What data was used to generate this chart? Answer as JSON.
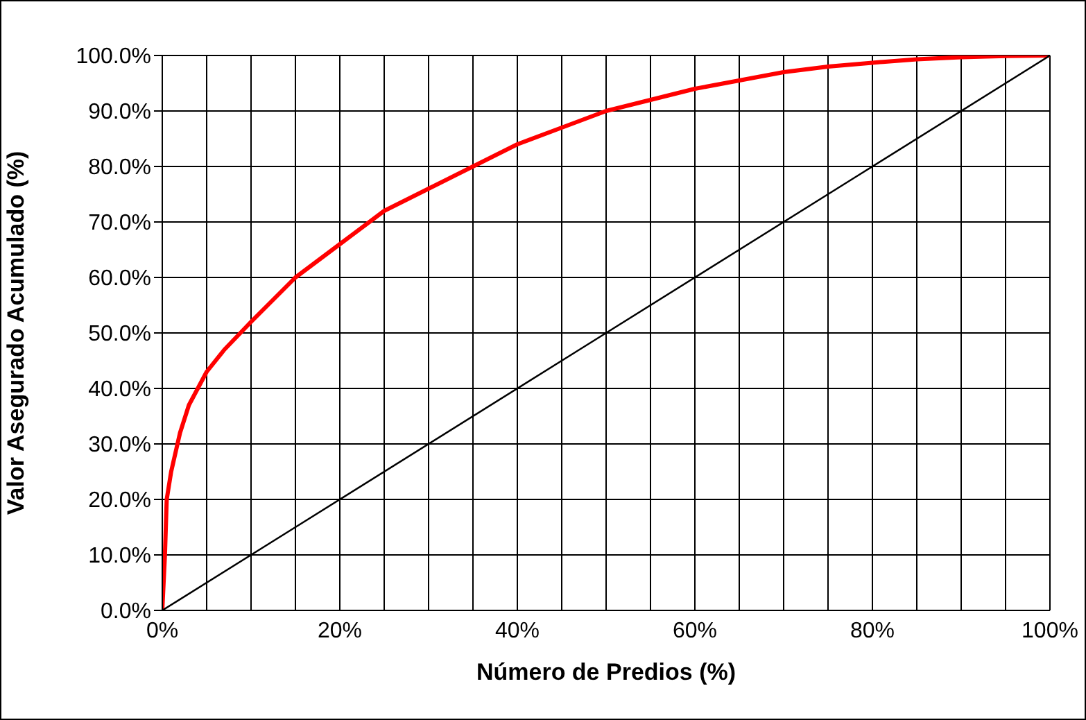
{
  "chart_data": {
    "type": "line",
    "xlabel": "Número de Predios (%)",
    "ylabel": "Valor Asegurado Acumulado (%)",
    "xlim": [
      0,
      100
    ],
    "ylim": [
      0,
      100
    ],
    "xticks": [
      {
        "value": 0,
        "label": "0%"
      },
      {
        "value": 5,
        "label": null
      },
      {
        "value": 10,
        "label": null
      },
      {
        "value": 15,
        "label": null
      },
      {
        "value": 20,
        "label": "20%"
      },
      {
        "value": 25,
        "label": null
      },
      {
        "value": 30,
        "label": null
      },
      {
        "value": 35,
        "label": null
      },
      {
        "value": 40,
        "label": "40%"
      },
      {
        "value": 45,
        "label": null
      },
      {
        "value": 50,
        "label": null
      },
      {
        "value": 55,
        "label": null
      },
      {
        "value": 60,
        "label": "60%"
      },
      {
        "value": 65,
        "label": null
      },
      {
        "value": 70,
        "label": null
      },
      {
        "value": 75,
        "label": null
      },
      {
        "value": 80,
        "label": "80%"
      },
      {
        "value": 85,
        "label": null
      },
      {
        "value": 90,
        "label": null
      },
      {
        "value": 95,
        "label": null
      },
      {
        "value": 100,
        "label": "100%"
      }
    ],
    "yticks": [
      {
        "value": 0,
        "label": "0.0%"
      },
      {
        "value": 10,
        "label": "10.0%"
      },
      {
        "value": 20,
        "label": "20.0%"
      },
      {
        "value": 30,
        "label": "30.0%"
      },
      {
        "value": 40,
        "label": "40.0%"
      },
      {
        "value": 50,
        "label": "50.0%"
      },
      {
        "value": 60,
        "label": "60.0%"
      },
      {
        "value": 70,
        "label": "70.0%"
      },
      {
        "value": 80,
        "label": "80.0%"
      },
      {
        "value": 90,
        "label": "90.0%"
      },
      {
        "value": 100,
        "label": "100.0%"
      }
    ],
    "grid": true,
    "marker": "none",
    "line_style": "solid",
    "series": [
      {
        "color": "#ff0000",
        "x": [
          0,
          0.3,
          0.5,
          1,
          2,
          3,
          5,
          7,
          10,
          15,
          20,
          25,
          30,
          35,
          40,
          45,
          50,
          55,
          60,
          65,
          70,
          75,
          80,
          85,
          90,
          95,
          100
        ],
        "values": [
          0,
          10,
          20,
          25,
          32,
          37,
          43,
          47,
          52,
          60,
          66,
          72,
          76,
          80,
          84,
          87,
          90,
          92,
          94,
          95.5,
          97,
          98,
          98.7,
          99.3,
          99.7,
          99.9,
          100
        ]
      },
      {
        "color": "#000000",
        "x": [
          0,
          100
        ],
        "values": [
          0,
          100
        ]
      }
    ]
  }
}
